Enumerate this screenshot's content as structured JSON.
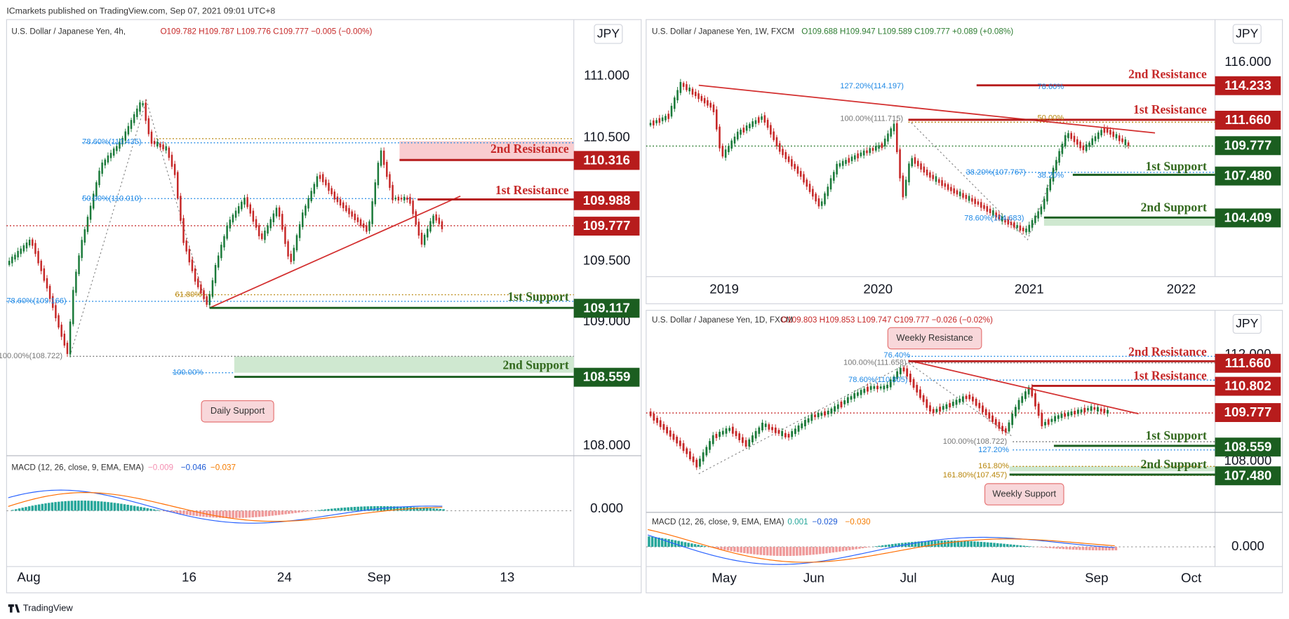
{
  "header": "ICmarkets published on TradingView.com, Sep 07, 2021 09:01 UTC+8",
  "footer": "TradingView",
  "panels": [
    {
      "title": "U.S. Dollar / Japanese Yen, 4h,",
      "ohlc": "O109.782 H109.787 L109.776 C109.777 −0.005 (−0.00%)",
      "currency": "JPY",
      "price_axis": [
        "111.000",
        "110.500",
        "109.500",
        "109.000",
        "108.000",
        "0.000"
      ],
      "time_axis": [
        "Aug",
        "16",
        "24",
        "Sep",
        "13"
      ],
      "levels": [
        {
          "name": "2nd Resistance",
          "price": "110.316"
        },
        {
          "name": "1st Resistance",
          "price": "109.988"
        },
        {
          "name": "1st Support",
          "price": "109.117"
        },
        {
          "name": "2nd Support",
          "price": "108.559"
        }
      ],
      "current_price": "109.777",
      "fib_labels": [
        "78.60%(110.435)",
        "50.00%(110.010)",
        "61.80%",
        "78.60%(109.166)",
        "100.00%(108.722)",
        "100.00%"
      ],
      "annotations": [
        "Daily Support"
      ],
      "macd": {
        "label": "MACD (12, 26, close, 9, EMA, EMA)",
        "values": [
          "−0.009",
          "−0.046",
          "−0.037"
        ]
      }
    },
    {
      "title": "U.S. Dollar / Japanese Yen, 1W, FXCM",
      "ohlc": "O109.688 H109.947 L109.589 C109.777 +0.089 (+0.08%)",
      "currency": "JPY",
      "price_axis": [
        "116.000"
      ],
      "time_axis": [
        "2019",
        "2020",
        "2021",
        "2022"
      ],
      "levels": [
        {
          "name": "2nd Resistance",
          "price": "114.233"
        },
        {
          "name": "1st Resistance",
          "price": "111.660"
        },
        {
          "name": "1st Support",
          "price": "107.480"
        },
        {
          "name": "2nd Support",
          "price": "104.409"
        }
      ],
      "current_price": "109.777",
      "fib_labels": [
        "127.20%(114.197)",
        "78.60%",
        "100.00%(111.715)",
        "50.00%",
        "38.20%(107.767)",
        "38.20%",
        "78.60%(104.683)"
      ]
    },
    {
      "title": "U.S. Dollar / Japanese Yen, 1D, FXCM",
      "ohlc": "O109.803 H109.853 L109.747 C109.777 −0.026 (−0.02%)",
      "currency": "JPY",
      "price_axis": [
        "112.000",
        "108.000",
        "0.000"
      ],
      "time_axis": [
        "May",
        "Jun",
        "Jul",
        "Aug",
        "Sep",
        "Oct"
      ],
      "levels": [
        {
          "name": "2nd Resistance",
          "price": "111.660"
        },
        {
          "name": "1st Resistance",
          "price": "110.802"
        },
        {
          "name": "1st Support",
          "price": "108.559"
        },
        {
          "name": "2nd Support",
          "price": "107.480"
        }
      ],
      "current_price": "109.777",
      "fib_labels": [
        "76.40%",
        "100.00%(111.658)",
        "78.60%(110.805)",
        "100.00%(108.722)",
        "127.20%",
        "161.80%",
        "161.80%(107.457)"
      ],
      "annotations": [
        "Weekly Resistance",
        "Weekly Support"
      ],
      "macd": {
        "label": "MACD (12, 26, close, 9, EMA, EMA)",
        "values": [
          "0.001",
          "−0.029",
          "−0.030"
        ]
      }
    }
  ]
}
